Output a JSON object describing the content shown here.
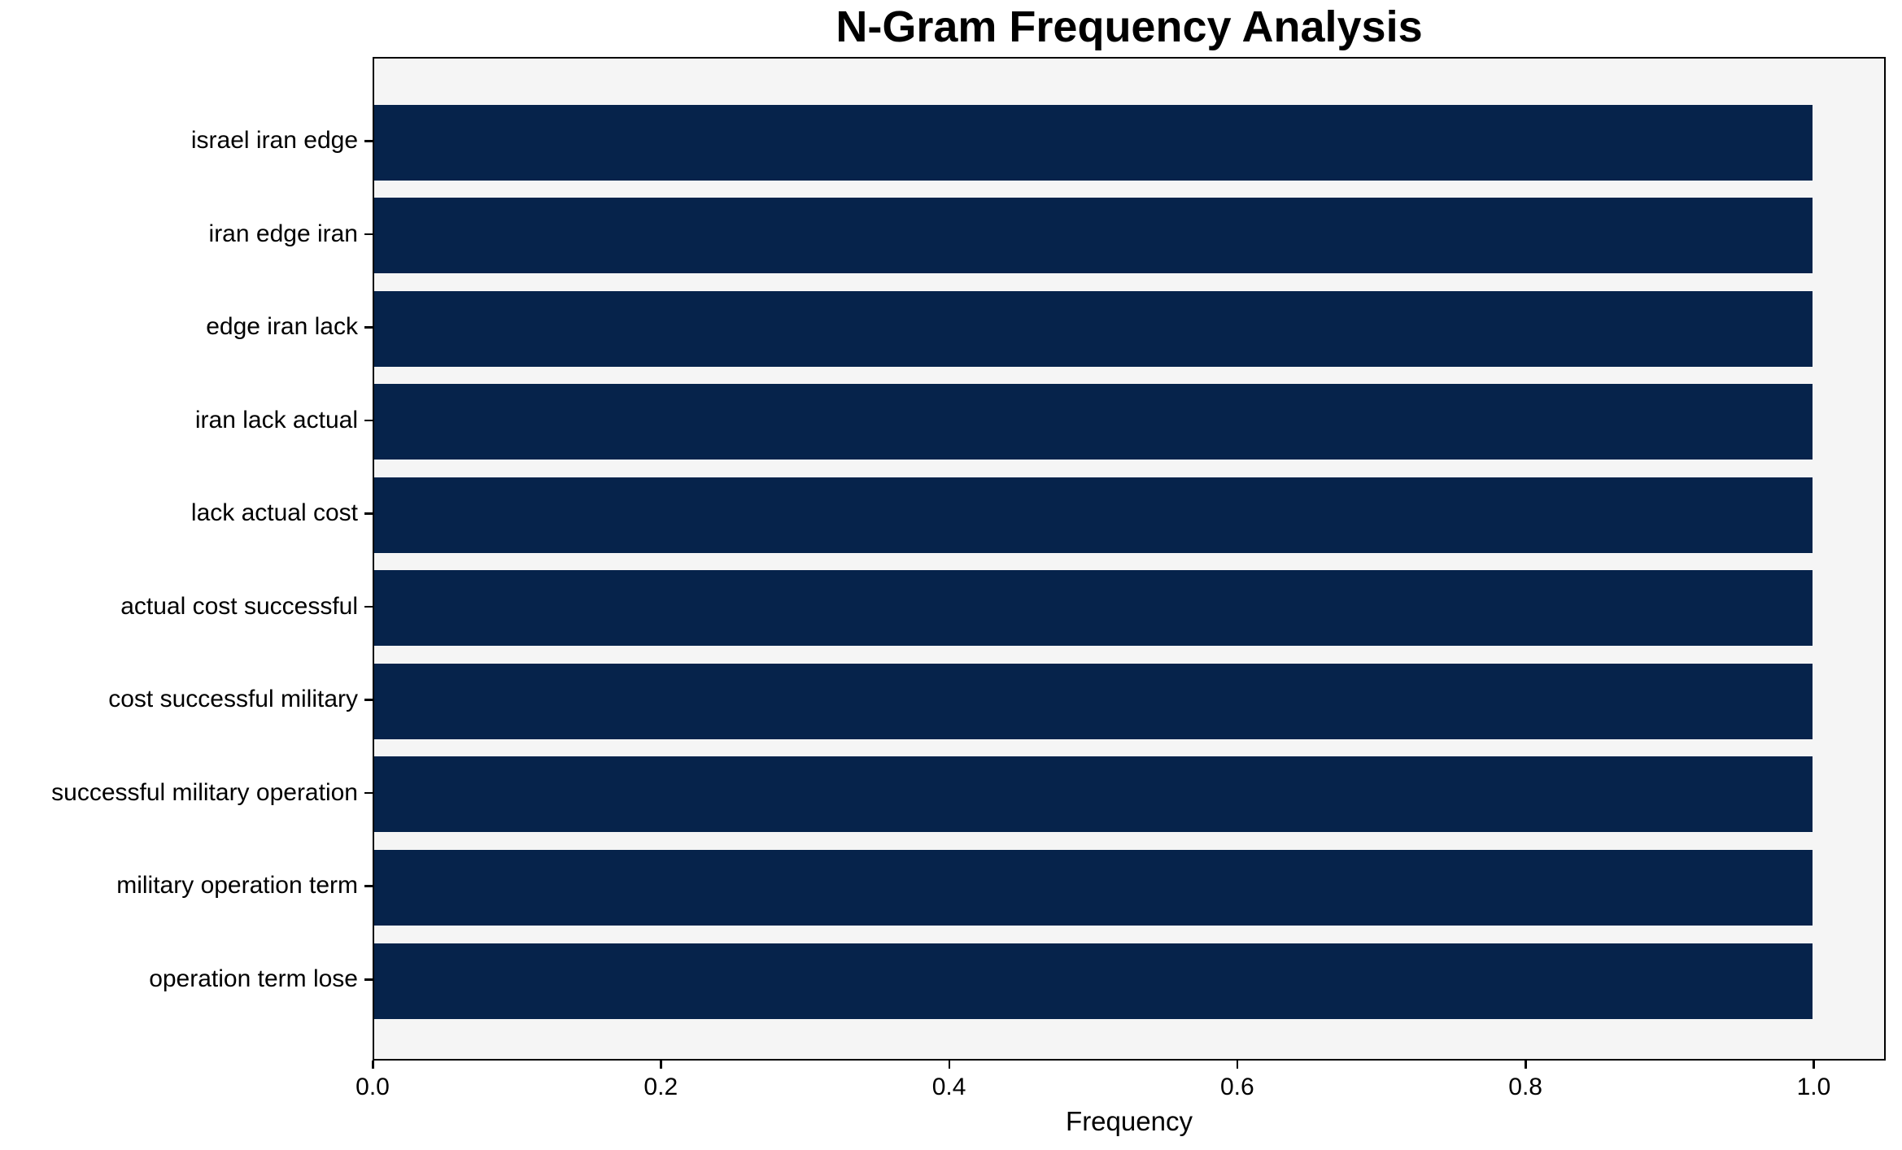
{
  "figure": {
    "background": "#ffffff",
    "axis_color": "#000000",
    "text_color": "#000000"
  },
  "chart_data": {
    "type": "bar",
    "orientation": "horizontal",
    "title": "N-Gram Frequency Analysis",
    "xlabel": "Frequency",
    "ylabel": "",
    "categories": [
      "israel iran edge",
      "iran edge iran",
      "edge iran lack",
      "iran lack actual",
      "lack actual cost",
      "actual cost successful",
      "cost successful military",
      "successful military operation",
      "military operation term",
      "operation term lose"
    ],
    "values": [
      1.0,
      1.0,
      1.0,
      1.0,
      1.0,
      1.0,
      1.0,
      1.0,
      1.0,
      1.0
    ],
    "xlim": [
      0.0,
      1.05
    ],
    "xtick_values": [
      0.0,
      0.2,
      0.4,
      0.6,
      0.8,
      1.0
    ],
    "xtick_labels": [
      "0.0",
      "0.2",
      "0.4",
      "0.6",
      "0.8",
      "1.0"
    ],
    "bar_color": "#06234b",
    "plot_background": "#f5f5f5",
    "grid": false,
    "legend": false
  }
}
